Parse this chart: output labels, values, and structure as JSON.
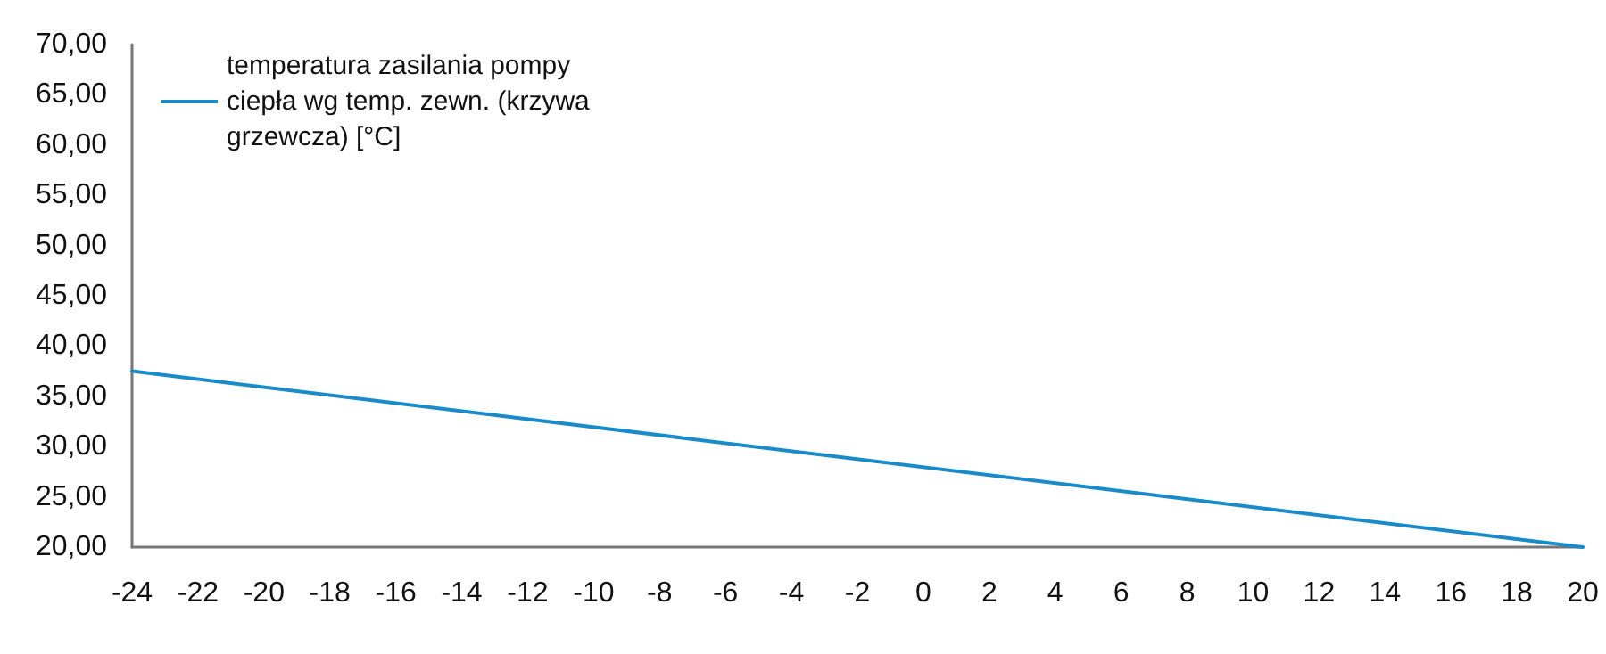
{
  "chart_data": {
    "type": "line",
    "legend": "top left",
    "grid": false,
    "marker": "none",
    "line_style": "solid",
    "series": [
      {
        "name": "temperatura zasilania pompy ciepła wg temp. zewn. (krzywa grzewcza) [°C]",
        "color": "#1a8bc9",
        "x": [
          -24,
          20
        ],
        "values": [
          37.5,
          20
        ]
      }
    ],
    "xlim": [
      -24,
      20
    ],
    "xticks": [
      -24,
      -22,
      -20,
      -18,
      -16,
      -14,
      -12,
      -10,
      -8,
      -6,
      -4,
      -2,
      0,
      2,
      4,
      6,
      8,
      10,
      12,
      14,
      16,
      18,
      20
    ],
    "ylim": [
      20,
      70
    ],
    "yticks": [
      {
        "value": 20,
        "label": "20,00"
      },
      {
        "value": 25,
        "label": "25,00"
      },
      {
        "value": 30,
        "label": "30,00"
      },
      {
        "value": 35,
        "label": "35,00"
      },
      {
        "value": 40,
        "label": "40,00"
      },
      {
        "value": 45,
        "label": "45,00"
      },
      {
        "value": 50,
        "label": "50,00"
      },
      {
        "value": 55,
        "label": "55,00"
      },
      {
        "value": 60,
        "label": "60,00"
      },
      {
        "value": 65,
        "label": "65,00"
      },
      {
        "value": 70,
        "label": "70,00"
      }
    ]
  }
}
